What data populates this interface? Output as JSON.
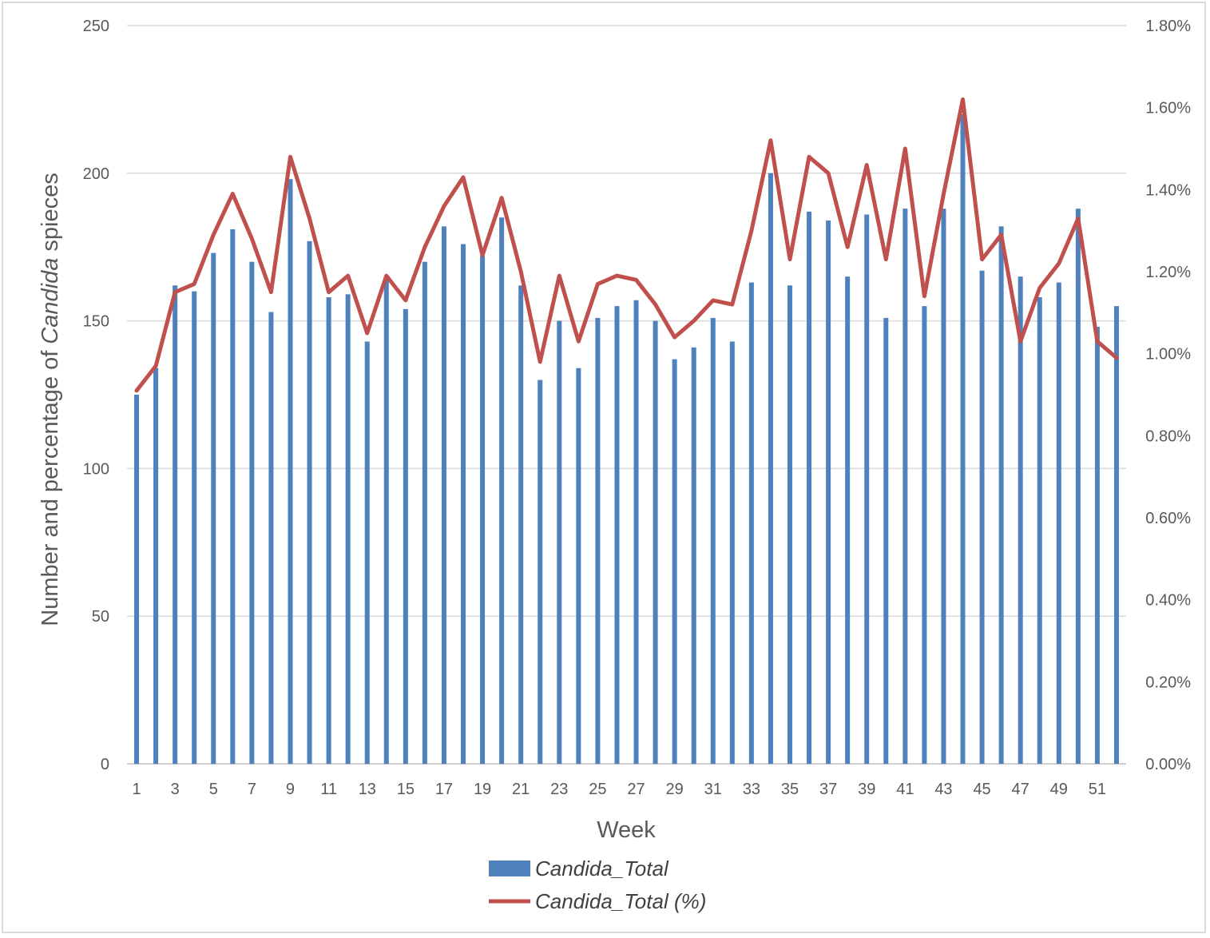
{
  "chart_data": {
    "type": "bar",
    "categories": [
      "1",
      "2",
      "3",
      "4",
      "5",
      "6",
      "7",
      "8",
      "9",
      "10",
      "11",
      "12",
      "13",
      "14",
      "15",
      "16",
      "17",
      "18",
      "19",
      "20",
      "21",
      "22",
      "23",
      "24",
      "25",
      "26",
      "27",
      "28",
      "29",
      "30",
      "31",
      "32",
      "33",
      "34",
      "35",
      "36",
      "37",
      "38",
      "39",
      "40",
      "41",
      "42",
      "43",
      "44",
      "45",
      "46",
      "47",
      "48",
      "49",
      "50",
      "51",
      "52"
    ],
    "x_tick_labels": [
      "1",
      "3",
      "5",
      "7",
      "9",
      "11",
      "13",
      "15",
      "17",
      "19",
      "21",
      "23",
      "25",
      "27",
      "29",
      "31",
      "33",
      "35",
      "37",
      "39",
      "41",
      "43",
      "45",
      "47",
      "49",
      "51"
    ],
    "series": [
      {
        "name": "Candida_Total",
        "type": "bar",
        "axis": "left",
        "color": "#4f81bd",
        "values": [
          125,
          134,
          162,
          160,
          173,
          181,
          170,
          153,
          198,
          177,
          158,
          159,
          143,
          165,
          154,
          170,
          182,
          176,
          172,
          185,
          162,
          130,
          150,
          134,
          151,
          155,
          157,
          150,
          137,
          141,
          151,
          143,
          163,
          200,
          162,
          187,
          184,
          165,
          186,
          151,
          188,
          155,
          188,
          220,
          167,
          182,
          165,
          158,
          163,
          188,
          148,
          155
        ]
      },
      {
        "name": "Candida_Total (%)",
        "type": "line",
        "axis": "right",
        "color": "#c0504d",
        "values": [
          0.91,
          0.97,
          1.15,
          1.17,
          1.29,
          1.39,
          1.28,
          1.15,
          1.48,
          1.33,
          1.15,
          1.19,
          1.05,
          1.19,
          1.13,
          1.26,
          1.36,
          1.43,
          1.24,
          1.38,
          1.2,
          0.98,
          1.19,
          1.03,
          1.17,
          1.19,
          1.18,
          1.12,
          1.04,
          1.08,
          1.13,
          1.12,
          1.3,
          1.52,
          1.23,
          1.48,
          1.44,
          1.26,
          1.46,
          1.23,
          1.5,
          1.14,
          1.39,
          1.62,
          1.23,
          1.29,
          1.03,
          1.16,
          1.22,
          1.33,
          1.03,
          0.99
        ]
      }
    ],
    "y_left": {
      "min": 0,
      "max": 250,
      "step": 50,
      "ticks": [
        "0",
        "50",
        "100",
        "150",
        "200",
        "250"
      ]
    },
    "y_right": {
      "min": 0,
      "max": 1.8,
      "step": 0.2,
      "ticks": [
        "0.00%",
        "0.20%",
        "0.40%",
        "0.60%",
        "0.80%",
        "1.00%",
        "1.20%",
        "1.40%",
        "1.60%",
        "1.80%"
      ]
    },
    "xlabel": "Week",
    "ylabel_parts": [
      "Number and percentage of ",
      "Candida",
      " spieces"
    ],
    "grid": true,
    "legend_position": "bottom"
  },
  "legend": [
    {
      "label": "Candida_Total",
      "kind": "bar",
      "color": "#4f81bd"
    },
    {
      "label": "Candida_Total (%)",
      "kind": "line",
      "color": "#c0504d"
    }
  ]
}
